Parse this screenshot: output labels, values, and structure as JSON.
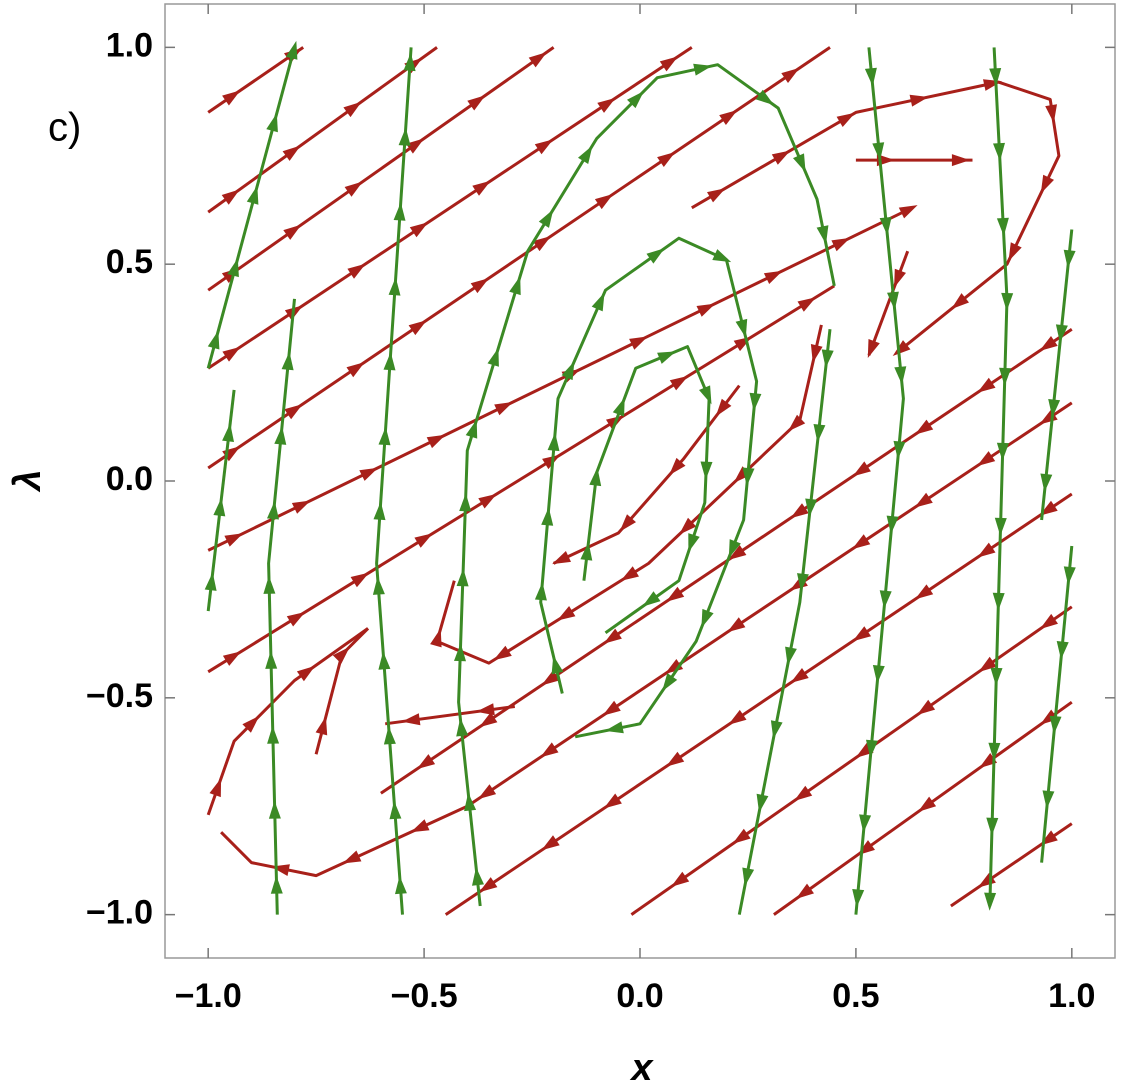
{
  "chart_data": {
    "type": "stream",
    "annotation": "c)",
    "xlabel": "x",
    "ylabel": "λ",
    "xlim": [
      -1.1,
      1.1
    ],
    "ylim": [
      -1.1,
      1.1
    ],
    "xticks": [
      {
        "value": -1,
        "label": "−1.0"
      },
      {
        "value": -0.5,
        "label": "−0.5"
      },
      {
        "value": 0,
        "label": "0.0"
      },
      {
        "value": 0.5,
        "label": "0.5"
      },
      {
        "value": 1,
        "label": "1.0"
      }
    ],
    "yticks": [
      {
        "value": -1,
        "label": "−1.0"
      },
      {
        "value": -0.5,
        "label": "−0.5"
      },
      {
        "value": 0,
        "label": "0.0"
      },
      {
        "value": 0.5,
        "label": "0.5"
      },
      {
        "value": 1,
        "label": "1.0"
      }
    ],
    "series": [
      {
        "color": "#a8201a",
        "x": [
          -1,
          -0.78
        ],
        "y": [
          0.85,
          1.0
        ]
      },
      {
        "color": "#a8201a",
        "x": [
          -1,
          -0.47
        ],
        "y": [
          0.62,
          1.0
        ]
      },
      {
        "color": "#a8201a",
        "x": [
          -1,
          -0.2
        ],
        "y": [
          0.44,
          1.0
        ]
      },
      {
        "color": "#a8201a",
        "x": [
          -1,
          0.12
        ],
        "y": [
          0.26,
          1.0
        ]
      },
      {
        "color": "#a8201a",
        "x": [
          -1,
          0.44
        ],
        "y": [
          0.03,
          1.0
        ]
      },
      {
        "color": "#a8201a",
        "x": [
          -1,
          0.63
        ],
        "y": [
          -0.16,
          0.63
        ]
      },
      {
        "color": "#a8201a",
        "x": [
          -1,
          0.45
        ],
        "y": [
          -0.44,
          0.45
        ]
      },
      {
        "color": "#a8201a",
        "x": [
          -1,
          -0.94,
          -0.8,
          -0.63
        ],
        "y": [
          -0.77,
          -0.6,
          -0.46,
          -0.34
        ]
      },
      {
        "color": "#a8201a",
        "x": [
          -0.75,
          -0.69,
          -0.63
        ],
        "y": [
          -0.63,
          -0.4,
          -0.34
        ]
      },
      {
        "color": "#a8201a",
        "x": [
          -0.29,
          -0.59
        ],
        "y": [
          -0.52,
          -0.56
        ]
      },
      {
        "color": "#a8201a",
        "x": [
          0.5,
          0.77
        ],
        "y": [
          0.74,
          0.74
        ]
      },
      {
        "color": "#a8201a",
        "x": [
          0.62,
          0.53
        ],
        "y": [
          0.53,
          0.29
        ]
      },
      {
        "color": "#a8201a",
        "x": [
          0.12,
          0.5,
          0.83,
          0.95,
          0.97,
          0.85,
          0.6
        ],
        "y": [
          0.63,
          0.85,
          0.92,
          0.88,
          0.75,
          0.5,
          0.3
        ]
      },
      {
        "color": "#a8201a",
        "x": [
          0.23,
          0.1,
          -0.05,
          -0.2
        ],
        "y": [
          0.22,
          0.05,
          -0.12,
          -0.19
        ]
      },
      {
        "color": "#a8201a",
        "x": [
          0.42,
          0.37,
          0.02,
          -0.35,
          -0.47,
          -0.43
        ],
        "y": [
          0.36,
          0.14,
          -0.19,
          -0.42,
          -0.37,
          -0.23
        ]
      },
      {
        "color": "#a8201a",
        "x": [
          1,
          -0.6
        ],
        "y": [
          0.35,
          -0.72
        ]
      },
      {
        "color": "#a8201a",
        "x": [
          1,
          0.2,
          -0.4,
          -0.75,
          -0.9,
          -0.97
        ],
        "y": [
          0.18,
          -0.35,
          -0.75,
          -0.91,
          -0.88,
          -0.81
        ]
      },
      {
        "color": "#a8201a",
        "x": [
          1,
          -0.45
        ],
        "y": [
          -0.03,
          -1.0
        ]
      },
      {
        "color": "#a8201a",
        "x": [
          1,
          -0.02
        ],
        "y": [
          -0.29,
          -1.0
        ]
      },
      {
        "color": "#a8201a",
        "x": [
          1,
          0.31
        ],
        "y": [
          -0.51,
          -1.0
        ]
      },
      {
        "color": "#a8201a",
        "x": [
          1,
          0.72
        ],
        "y": [
          -0.79,
          -0.98
        ]
      },
      {
        "color": "#3b8a25",
        "x": [
          -1,
          -0.94
        ],
        "y": [
          -0.3,
          0.21
        ]
      },
      {
        "color": "#3b8a25",
        "x": [
          -1,
          -0.8
        ],
        "y": [
          0.26,
          1.0
        ]
      },
      {
        "color": "#3b8a25",
        "x": [
          -0.84,
          -0.86,
          -0.8
        ],
        "y": [
          -1.0,
          -0.19,
          0.42
        ]
      },
      {
        "color": "#3b8a25",
        "x": [
          -0.55,
          -0.61,
          -0.53
        ],
        "y": [
          -1.0,
          -0.19,
          1.0
        ]
      },
      {
        "color": "#3b8a25",
        "x": [
          -0.37,
          -0.42,
          -0.4,
          -0.26,
          -0.1,
          0.04,
          0.18,
          0.32,
          0.41,
          0.45
        ],
        "y": [
          -0.98,
          -0.51,
          0.07,
          0.53,
          0.79,
          0.93,
          0.96,
          0.86,
          0.65,
          0.45
        ]
      },
      {
        "color": "#3b8a25",
        "x": [
          -0.18,
          -0.23,
          -0.19,
          -0.08,
          0.09,
          0.2,
          0.27,
          0.24,
          0.13,
          0,
          -0.15
        ],
        "y": [
          -0.49,
          -0.28,
          0.19,
          0.44,
          0.56,
          0.51,
          0.23,
          -0.09,
          -0.37,
          -0.56,
          -0.59
        ]
      },
      {
        "color": "#3b8a25",
        "x": [
          -0.13,
          -0.1,
          -0.01,
          0.11,
          0.16,
          0.15,
          0.09,
          -0.08
        ],
        "y": [
          -0.23,
          0.02,
          0.26,
          0.31,
          0.19,
          -0.05,
          -0.23,
          -0.35
        ]
      },
      {
        "color": "#3b8a25",
        "x": [
          0.44,
          0.37,
          0.23
        ],
        "y": [
          0.35,
          -0.28,
          -1.0
        ]
      },
      {
        "color": "#3b8a25",
        "x": [
          0.53,
          0.61,
          0.5
        ],
        "y": [
          1.0,
          0.19,
          -1.0
        ]
      },
      {
        "color": "#3b8a25",
        "x": [
          0.82,
          0.85,
          0.81
        ],
        "y": [
          1.0,
          0.42,
          -0.98
        ]
      },
      {
        "color": "#3b8a25",
        "x": [
          1,
          0.93
        ],
        "y": [
          0.58,
          -0.09
        ]
      },
      {
        "color": "#3b8a25",
        "x": [
          1,
          0.93
        ],
        "y": [
          -0.15,
          -0.88
        ]
      }
    ]
  }
}
